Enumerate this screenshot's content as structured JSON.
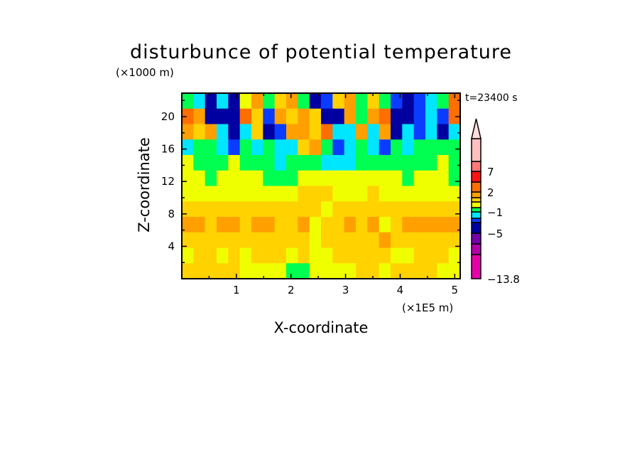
{
  "chart_data": {
    "type": "heatmap",
    "title": "disturbunce of potential temperature",
    "xlabel": "X-coordinate",
    "ylabel": "Z-coordinate",
    "x_unit": "(×1E5 m)",
    "y_unit": "(×1000 m)",
    "annotation": "t=23400 s",
    "xlim": [
      0,
      5.1
    ],
    "ylim": [
      0,
      22.9
    ],
    "x_ticks": [
      "1",
      "2",
      "3",
      "4",
      "5"
    ],
    "y_ticks": [
      "4",
      "8",
      "12",
      "16",
      "20"
    ],
    "colorbar": {
      "labels": [
        {
          "text": "7",
          "value": 7
        },
        {
          "text": "2",
          "value": 2
        },
        {
          "text": "−1",
          "value": -1
        },
        {
          "text": "−5",
          "value": -5
        },
        {
          "text": "−13.8",
          "value": -13.8
        }
      ],
      "levels": [
        -13.8,
        -9,
        -7,
        -5,
        -3,
        -2,
        -1,
        0,
        1,
        2,
        3,
        5,
        7,
        10,
        14
      ],
      "colors": [
        "#e600aa",
        "#b400aa",
        "#7800aa",
        "#0000a0",
        "#0a3cff",
        "#00e6ff",
        "#00ff50",
        "#f0ff00",
        "#ffd200",
        "#ffa000",
        "#ff6e00",
        "#ff1414",
        "#ff7878",
        "#ffc0c0"
      ],
      "extend_top_color": "#ffdcdc"
    },
    "grid_rows_top_to_bottom": [
      [
        -0.5,
        -1.5,
        -4,
        -1.5,
        -4,
        0.5,
        2.5,
        -0.5,
        1.5,
        2.5,
        -0.5,
        -4,
        -2.5,
        1.5,
        2.5,
        -0.5,
        1.5,
        -0.5,
        -2.5,
        -4,
        -2.5,
        -1.5,
        -0.5,
        4
      ],
      [
        4,
        2.5,
        -4,
        -4,
        -4,
        4,
        1.5,
        -2.5,
        2.5,
        1.5,
        2.5,
        1.5,
        -4,
        -4,
        2.5,
        -0.5,
        2.5,
        4,
        -4,
        -4,
        -2.5,
        -1.5,
        -2.5,
        4
      ],
      [
        2.5,
        1.5,
        2.5,
        -1.5,
        -4,
        -1.5,
        1.5,
        -4,
        -2.5,
        2.5,
        2.5,
        1.5,
        4,
        -1.5,
        -1.5,
        2.5,
        -1.5,
        2.5,
        -4,
        -1.5,
        -2.5,
        -1.5,
        -4,
        -1.5
      ],
      [
        -1.5,
        -0.5,
        -0.5,
        -1.5,
        -2.5,
        -0.5,
        -1.5,
        -0.5,
        -1.5,
        -1.5,
        1.5,
        2.5,
        -0.5,
        -2.5,
        -1.5,
        -0.5,
        -1.5,
        -2.5,
        -0.5,
        -1.5,
        -0.5,
        -0.5,
        -0.5,
        -0.5
      ],
      [
        0.5,
        -0.5,
        -0.5,
        -0.5,
        0.5,
        -0.5,
        -0.5,
        -0.5,
        -1.5,
        -0.5,
        -0.5,
        -0.5,
        -1.5,
        -1.5,
        -1.5,
        -0.5,
        -0.5,
        -0.5,
        -0.5,
        -0.5,
        -0.5,
        -0.5,
        0.5,
        -0.5
      ],
      [
        0.5,
        0.5,
        -0.5,
        0.5,
        0.5,
        0.5,
        0.5,
        -0.5,
        -0.5,
        -0.5,
        0.5,
        0.5,
        0.5,
        0.5,
        0.5,
        0.5,
        0.5,
        0.5,
        0.5,
        -0.5,
        0.5,
        0.5,
        0.5,
        -0.5
      ],
      [
        0.5,
        0.5,
        0.5,
        0.5,
        0.5,
        0.5,
        0.5,
        0.5,
        0.5,
        0.5,
        1.5,
        1.5,
        1.5,
        0.5,
        0.5,
        0.5,
        1.5,
        0.5,
        0.5,
        0.5,
        0.5,
        0.5,
        0.5,
        0.5
      ],
      [
        1.5,
        1.5,
        1.5,
        1.5,
        1.5,
        1.5,
        1.5,
        1.5,
        1.5,
        1.5,
        1.5,
        1.5,
        0.5,
        1.5,
        1.5,
        1.5,
        1.5,
        1.5,
        1.5,
        1.5,
        1.5,
        1.5,
        1.5,
        1.5
      ],
      [
        2.5,
        2.5,
        1.5,
        2.5,
        2.5,
        1.5,
        2.5,
        2.5,
        1.5,
        1.5,
        2.5,
        0.5,
        1.5,
        1.5,
        2.5,
        1.5,
        2.5,
        0.5,
        1.5,
        2.5,
        2.5,
        2.5,
        2.5,
        2.5
      ],
      [
        1.5,
        1.5,
        1.5,
        1.5,
        1.5,
        1.5,
        1.5,
        1.5,
        1.5,
        1.5,
        1.5,
        0.5,
        1.5,
        1.5,
        1.5,
        1.5,
        1.5,
        2.5,
        1.5,
        1.5,
        1.5,
        1.5,
        1.5,
        1.5
      ],
      [
        0.5,
        1.5,
        1.5,
        0.5,
        1.5,
        0.5,
        1.5,
        1.5,
        1.5,
        0.5,
        1.5,
        0.5,
        0.5,
        1.5,
        1.5,
        1.5,
        1.5,
        1.5,
        0.5,
        0.5,
        1.5,
        1.5,
        1.5,
        0.5
      ],
      [
        1.5,
        1.5,
        1.5,
        1.5,
        1.5,
        0.5,
        0.5,
        0.5,
        0.5,
        -0.5,
        -0.5,
        0.5,
        0.5,
        0.5,
        0.5,
        1.5,
        1.5,
        0.5,
        1.5,
        1.5,
        1.5,
        1.5,
        0.5,
        0.5
      ]
    ]
  }
}
